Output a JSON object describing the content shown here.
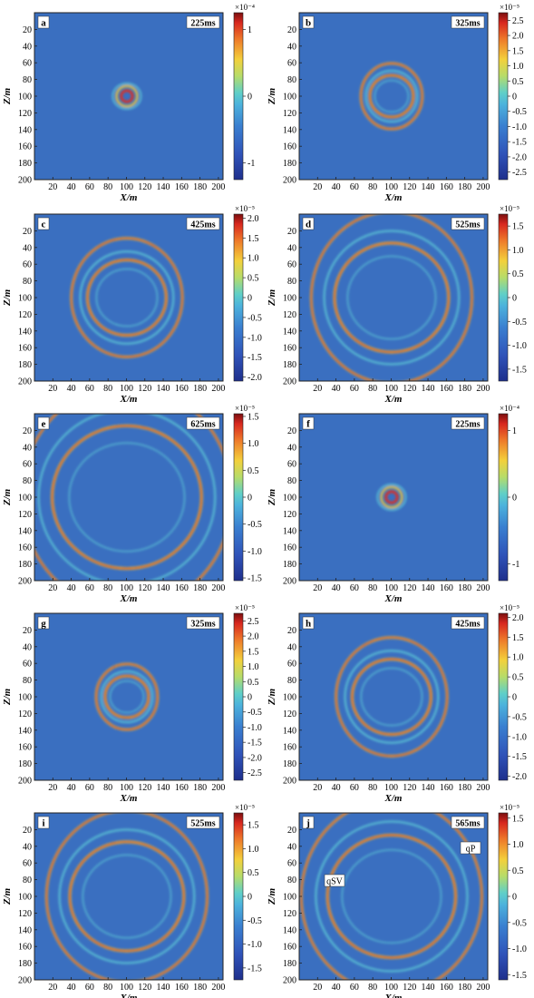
{
  "figure": {
    "panels": [
      {
        "label": "a",
        "time": "225ms",
        "exponent": "×10⁻⁴",
        "ticks": [
          "1",
          "0",
          "-1"
        ],
        "tick_values": [
          1,
          0,
          -1
        ],
        "vmax": 1.25,
        "stage": 0,
        "extra": []
      },
      {
        "label": "b",
        "time": "325ms",
        "exponent": "×10⁻⁵",
        "ticks": [
          "2.5",
          "2.0",
          "1.5",
          "1.0",
          "0.5",
          "0",
          "-0.5",
          "-1.0",
          "-1.5",
          "-2.0",
          "-2.5"
        ],
        "tick_values": [
          2.5,
          2.0,
          1.5,
          1.0,
          0.5,
          0,
          -0.5,
          -1.0,
          -1.5,
          -2.0,
          -2.5
        ],
        "vmax": 2.75,
        "stage": 1,
        "extra": []
      },
      {
        "label": "c",
        "time": "425ms",
        "exponent": "×10⁻⁵",
        "ticks": [
          "2.0",
          "1.5",
          "1.0",
          "0.5",
          "0",
          "-0.5",
          "-1.0",
          "-1.5",
          "-2.0"
        ],
        "tick_values": [
          2.0,
          1.5,
          1.0,
          0.5,
          0,
          -0.5,
          -1.0,
          -1.5,
          -2.0
        ],
        "vmax": 2.1,
        "stage": 2,
        "extra": []
      },
      {
        "label": "d",
        "time": "525ms",
        "exponent": "×10⁻⁵",
        "ticks": [
          "1.5",
          "1.0",
          "0.5",
          "0",
          "-0.5",
          "-1.0",
          "-1.5"
        ],
        "tick_values": [
          1.5,
          1.0,
          0.5,
          0,
          -0.5,
          -1.0,
          -1.5
        ],
        "vmax": 1.75,
        "stage": 3,
        "extra": []
      },
      {
        "label": "e",
        "time": "625ms",
        "exponent": "×10⁻⁵",
        "ticks": [
          "1.5",
          "1.0",
          "0.5",
          "0",
          "-0.5",
          "-1.0",
          "-1.5"
        ],
        "tick_values": [
          1.5,
          1.0,
          0.5,
          0,
          -0.5,
          -1.0,
          -1.5
        ],
        "vmax": 1.55,
        "stage": 4,
        "extra": []
      },
      {
        "label": "f",
        "time": "225ms",
        "exponent": "×10⁻⁴",
        "ticks": [
          "1",
          "0",
          "-1"
        ],
        "tick_values": [
          1,
          0,
          -1
        ],
        "vmax": 1.25,
        "stage": 0,
        "extra": []
      },
      {
        "label": "g",
        "time": "325ms",
        "exponent": "×10⁻⁵",
        "ticks": [
          "2.5",
          "2.0",
          "1.5",
          "1.0",
          "0.5",
          "0",
          "-0.5",
          "-1.0",
          "-1.5",
          "-2.0",
          "-2.5"
        ],
        "tick_values": [
          2.5,
          2.0,
          1.5,
          1.0,
          0.5,
          0,
          -0.5,
          -1.0,
          -1.5,
          -2.0,
          -2.5
        ],
        "vmax": 2.75,
        "stage": 1,
        "extra": []
      },
      {
        "label": "h",
        "time": "425ms",
        "exponent": "×10⁻⁵",
        "ticks": [
          "2.0",
          "1.5",
          "1.0",
          "0.5",
          "0",
          "-0.5",
          "-1.0",
          "-1.5",
          "-2.0"
        ],
        "tick_values": [
          2.0,
          1.5,
          1.0,
          0.5,
          0,
          -0.5,
          -1.0,
          -1.5,
          -2.0
        ],
        "vmax": 2.1,
        "stage": 2,
        "extra": []
      },
      {
        "label": "i",
        "time": "525ms",
        "exponent": "×10⁻⁵",
        "ticks": [
          "1.5",
          "1.0",
          "0.5",
          "0",
          "-0.5",
          "-1.0",
          "-1.5"
        ],
        "tick_values": [
          1.5,
          1.0,
          0.5,
          0,
          -0.5,
          -1.0,
          -1.5
        ],
        "vmax": 1.75,
        "stage": 3,
        "extra": []
      },
      {
        "label": "j",
        "time": "565ms",
        "exponent": "×10⁻⁵",
        "ticks": [
          "1.5",
          "1.0",
          "0.5",
          "0",
          "-0.5",
          "-1.0",
          "-1.5"
        ],
        "tick_values": [
          1.5,
          1.0,
          0.5,
          0,
          -0.5,
          -1.0,
          -1.5
        ],
        "vmax": 1.6,
        "stage": 3.4,
        "extra": [
          "qP",
          "qSV"
        ]
      }
    ],
    "x_axis": {
      "title": "X/m",
      "ticks": [
        "20",
        "40",
        "60",
        "80",
        "100",
        "120",
        "140",
        "160",
        "180",
        "200"
      ],
      "range": [
        0,
        205
      ]
    },
    "z_axis": {
      "title": "Z/m",
      "ticks": [
        "20",
        "40",
        "60",
        "80",
        "100",
        "120",
        "140",
        "160",
        "180",
        "200"
      ],
      "range": [
        0,
        200
      ]
    },
    "colors": {
      "background": "#3a6fc0",
      "ring_inner": "#d83226",
      "ring_mid": "#f2c93a",
      "ring_outer": "#5ec9d6",
      "frame": "#222222"
    }
  }
}
